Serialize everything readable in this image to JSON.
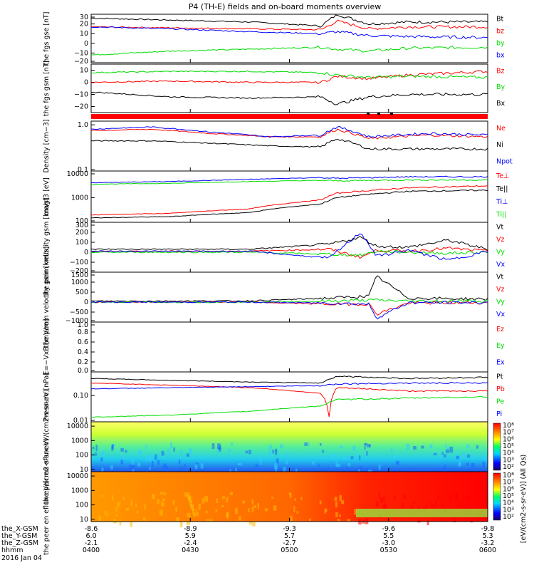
{
  "title": "P4 (TH-E) fields and on-board moments overview",
  "colors": {
    "black": "#000000",
    "red": "#ff0000",
    "green": "#00dd00",
    "blue": "#0000ff",
    "frame": "#000000"
  },
  "footer": {
    "rows": [
      "the_X-GSM",
      "the_Y-GSM",
      "the_Z-GSM",
      "hhmm",
      "2016 Jan 04"
    ],
    "columns": [
      {
        "x": "-8.6",
        "y": "6.0",
        "z": "-2.1",
        "t": "0400"
      },
      {
        "x": "-8.9",
        "y": "5.9",
        "z": "-2.4",
        "t": "0430"
      },
      {
        "x": "-9.3",
        "y": "5.7",
        "z": "-2.7",
        "t": "0500"
      },
      {
        "x": "-9.6",
        "y": "5.5",
        "z": "-3.0",
        "t": "0530"
      },
      {
        "x": "-9.8",
        "y": "5.3",
        "z": "-3.2",
        "t": "0600"
      }
    ]
  },
  "chart_data": [
    {
      "type": "line",
      "ylabel": "the fgs gse [nT]",
      "ylim": [
        -20,
        30
      ],
      "ticks": [
        "30",
        "20",
        "10",
        "0",
        "−10",
        "−20"
      ],
      "legend": [
        "Bt",
        "bz",
        "by",
        "bx"
      ],
      "series": [
        {
          "name": "Bt",
          "x": [
            0,
            0.2,
            0.4,
            0.58,
            0.62,
            0.7,
            0.8,
            1.0
          ],
          "values": [
            26,
            24,
            22,
            18,
            30,
            20,
            22,
            22
          ]
        },
        {
          "name": "bz",
          "x": [
            0,
            0.2,
            0.4,
            0.58,
            0.62,
            0.7,
            0.8,
            1.0
          ],
          "values": [
            17,
            16,
            15,
            14,
            23,
            15,
            17,
            17
          ]
        },
        {
          "name": "by",
          "x": [
            0,
            0.2,
            0.4,
            0.58,
            0.62,
            0.7,
            0.8,
            1.0
          ],
          "values": [
            -12,
            -8,
            -6,
            -4,
            -6,
            -8,
            -5,
            -4
          ]
        },
        {
          "name": "bx",
          "x": [
            0,
            0.2,
            0.4,
            0.58,
            0.62,
            0.7,
            0.8,
            1.0
          ],
          "values": [
            17,
            15,
            12,
            10,
            12,
            8,
            7,
            6
          ]
        }
      ]
    },
    {
      "type": "line",
      "ylabel": "the fgs gsm [nT]",
      "ylim": [
        -25,
        15
      ],
      "ticks": [
        "10",
        "0",
        "−10",
        "−20"
      ],
      "legend": [
        "Bz",
        "By",
        "Bx"
      ],
      "series": [
        {
          "name": "Bz",
          "x": [
            0,
            0.2,
            0.4,
            0.58,
            0.62,
            0.7,
            0.8,
            1.0
          ],
          "values": [
            0,
            1,
            0,
            0,
            5,
            3,
            6,
            9
          ]
        },
        {
          "name": "By",
          "x": [
            0,
            0.2,
            0.4,
            0.58,
            0.62,
            0.7,
            0.8,
            1.0
          ],
          "values": [
            8,
            9,
            9,
            8,
            6,
            4,
            5,
            4
          ]
        },
        {
          "name": "Bx",
          "x": [
            0,
            0.2,
            0.4,
            0.58,
            0.62,
            0.7,
            0.8,
            1.0
          ],
          "values": [
            -8,
            -12,
            -13,
            -12,
            -18,
            -12,
            -10,
            -10
          ]
        }
      ]
    },
    {
      "type": "line",
      "ylabel": "Density [cm−3]",
      "ylim": [
        0.1,
        1.2
      ],
      "log": true,
      "ticks": [
        "1.0",
        "0.1"
      ],
      "legend": [
        "Ne",
        "Ni",
        "Npot"
      ],
      "series": [
        {
          "name": "Ne",
          "x": [
            0,
            0.15,
            0.3,
            0.45,
            0.58,
            0.62,
            0.7,
            0.85,
            1.0
          ],
          "values": [
            0.75,
            0.8,
            0.65,
            0.55,
            0.55,
            0.8,
            0.5,
            0.6,
            0.55
          ]
        },
        {
          "name": "Ni",
          "x": [
            0,
            0.15,
            0.3,
            0.45,
            0.58,
            0.62,
            0.7,
            0.85,
            1.0
          ],
          "values": [
            0.45,
            0.45,
            0.4,
            0.35,
            0.33,
            0.5,
            0.3,
            0.3,
            0.3
          ]
        },
        {
          "name": "Npot",
          "x": [
            0,
            0.15,
            0.3,
            0.45,
            0.58,
            0.62,
            0.7,
            0.85,
            1.0
          ],
          "values": [
            0.8,
            0.9,
            0.7,
            0.55,
            0.6,
            0.9,
            0.55,
            0.65,
            0.6
          ]
        }
      ]
    },
    {
      "type": "line",
      "ylabel": "magt3 [eV]",
      "ylim": [
        100,
        12000
      ],
      "log": true,
      "ticks": [
        "10000",
        "1000",
        "100"
      ],
      "legend": [
        "Te⊥",
        "Te||",
        "Ti⊥",
        "Ti||"
      ],
      "series": [
        {
          "name": "Te⊥",
          "x": [
            0,
            0.2,
            0.4,
            0.58,
            0.62,
            0.8,
            1.0
          ],
          "values": [
            200,
            230,
            350,
            800,
            1500,
            2500,
            3000
          ]
        },
        {
          "name": "Te||",
          "x": [
            0,
            0.2,
            0.4,
            0.58,
            0.62,
            0.8,
            1.0
          ],
          "values": [
            150,
            170,
            250,
            550,
            1000,
            1800,
            2000
          ]
        },
        {
          "name": "Ti⊥",
          "x": [
            0,
            0.2,
            0.4,
            0.58,
            0.62,
            0.8,
            1.0
          ],
          "values": [
            4000,
            4500,
            5500,
            6500,
            6000,
            7000,
            7000
          ]
        },
        {
          "name": "Ti||",
          "x": [
            0,
            0.2,
            0.4,
            0.58,
            0.62,
            0.8,
            1.0
          ],
          "values": [
            3500,
            3800,
            4500,
            5000,
            4800,
            5200,
            5200
          ]
        }
      ]
    },
    {
      "type": "line",
      "ylabel": "the peim velocity gsm [km/s]",
      "ylim": [
        -200,
        300
      ],
      "ticks": [
        "300",
        "200",
        "100",
        "0",
        "−100",
        "−200"
      ],
      "legend": [
        "Vt",
        "Vz",
        "Vy",
        "Vx"
      ],
      "series": [
        {
          "name": "Vt",
          "x": [
            0,
            0.4,
            0.6,
            0.68,
            0.72,
            0.8,
            0.9,
            1.0
          ],
          "values": [
            30,
            30,
            80,
            150,
            60,
            50,
            120,
            30
          ]
        },
        {
          "name": "Vz",
          "x": [
            0,
            0.4,
            0.6,
            0.68,
            0.72,
            0.8,
            0.9,
            1.0
          ],
          "values": [
            10,
            10,
            30,
            -50,
            20,
            10,
            40,
            10
          ]
        },
        {
          "name": "Vy",
          "x": [
            0,
            0.4,
            0.6,
            0.68,
            0.72,
            0.8,
            0.9,
            1.0
          ],
          "values": [
            0,
            0,
            -20,
            -30,
            10,
            0,
            -10,
            0
          ]
        },
        {
          "name": "Vx",
          "x": [
            0,
            0.4,
            0.6,
            0.68,
            0.72,
            0.8,
            0.9,
            1.0
          ],
          "values": [
            10,
            10,
            -60,
            200,
            -40,
            20,
            -80,
            10
          ]
        }
      ]
    },
    {
      "type": "line",
      "ylabel": "the peem velocity gsm [km/s]",
      "ylim": [
        -1000,
        1500
      ],
      "ticks": [
        "1500",
        "1000",
        "500",
        "0",
        "−500",
        "−1000"
      ],
      "legend": [
        "Vt",
        "Vz",
        "Vy",
        "Vx"
      ],
      "series": [
        {
          "name": "Vt",
          "x": [
            0,
            0.4,
            0.6,
            0.7,
            0.72,
            0.8,
            1.0
          ],
          "values": [
            50,
            60,
            200,
            300,
            1300,
            200,
            150
          ]
        },
        {
          "name": "Vz",
          "x": [
            0,
            0.4,
            0.6,
            0.7,
            0.72,
            0.8,
            1.0
          ],
          "values": [
            0,
            0,
            -100,
            -100,
            -600,
            -50,
            -30
          ]
        },
        {
          "name": "Vy",
          "x": [
            0,
            0.4,
            0.6,
            0.7,
            0.72,
            0.8,
            1.0
          ],
          "values": [
            0,
            0,
            50,
            100,
            100,
            50,
            60
          ]
        },
        {
          "name": "Vx",
          "x": [
            0,
            0.4,
            0.6,
            0.7,
            0.72,
            0.8,
            1.0
          ],
          "values": [
            0,
            0,
            -50,
            -100,
            -800,
            -30,
            -20
          ]
        }
      ]
    },
    {
      "type": "line",
      "ylabel": "E=−VxB [mV/m]",
      "ylim": [
        0,
        1.0
      ],
      "ticks": [
        "1.0",
        "0.8",
        "0.6",
        "0.4",
        "0.2",
        "0.0"
      ],
      "legend": [
        "Ez",
        "Ey",
        "Ex"
      ],
      "series": []
    },
    {
      "type": "line",
      "ylabel": "Pressure [nPa]",
      "ylim": [
        0.01,
        0.8
      ],
      "log": true,
      "ticks": [
        "0.10",
        "0.01"
      ],
      "legend": [
        "Pt",
        "Pb",
        "Pe",
        "Pi"
      ],
      "series": [
        {
          "name": "Pt",
          "x": [
            0,
            0.2,
            0.4,
            0.58,
            0.62,
            0.8,
            1.0
          ],
          "values": [
            0.45,
            0.38,
            0.33,
            0.3,
            0.55,
            0.45,
            0.5
          ]
        },
        {
          "name": "Pb",
          "x": [
            0,
            0.2,
            0.4,
            0.58,
            0.6,
            0.62,
            0.8,
            1.0
          ],
          "values": [
            0.3,
            0.25,
            0.2,
            0.12,
            0.015,
            0.2,
            0.15,
            0.15
          ]
        },
        {
          "name": "Pe",
          "x": [
            0,
            0.2,
            0.4,
            0.58,
            0.62,
            0.8,
            1.0
          ],
          "values": [
            0.015,
            0.018,
            0.025,
            0.04,
            0.07,
            0.08,
            0.09
          ]
        },
        {
          "name": "Pi",
          "x": [
            0,
            0.2,
            0.4,
            0.58,
            0.62,
            0.8,
            1.0
          ],
          "values": [
            0.18,
            0.2,
            0.22,
            0.24,
            0.28,
            0.3,
            0.3
          ]
        }
      ]
    },
    {
      "type": "heatmap",
      "ylabel": "the peir en eflux eV/(cm2-s-sr-eV)",
      "ylim": [
        7,
        20000
      ],
      "log": true,
      "ticks": [
        "10000",
        "1000",
        "100",
        "10"
      ],
      "cbar_ticks": [
        "10⁸",
        "10⁷",
        "10⁶",
        "10⁵",
        "10⁴",
        "10³",
        "10²"
      ]
    },
    {
      "type": "heatmap",
      "ylabel": "the peer en eflux eV/(cm2-s-sr-eV)",
      "ylim": [
        7,
        20000
      ],
      "log": true,
      "ticks": [
        "10000",
        "1000",
        "100",
        "10"
      ],
      "cbar_ticks": [
        "10⁸",
        "10⁷",
        "10⁶",
        "10⁵",
        "10⁴",
        "10³",
        "10²"
      ],
      "cbar_label": "[eV/(cm2-s-sr-eV)] (All Qs)"
    }
  ]
}
